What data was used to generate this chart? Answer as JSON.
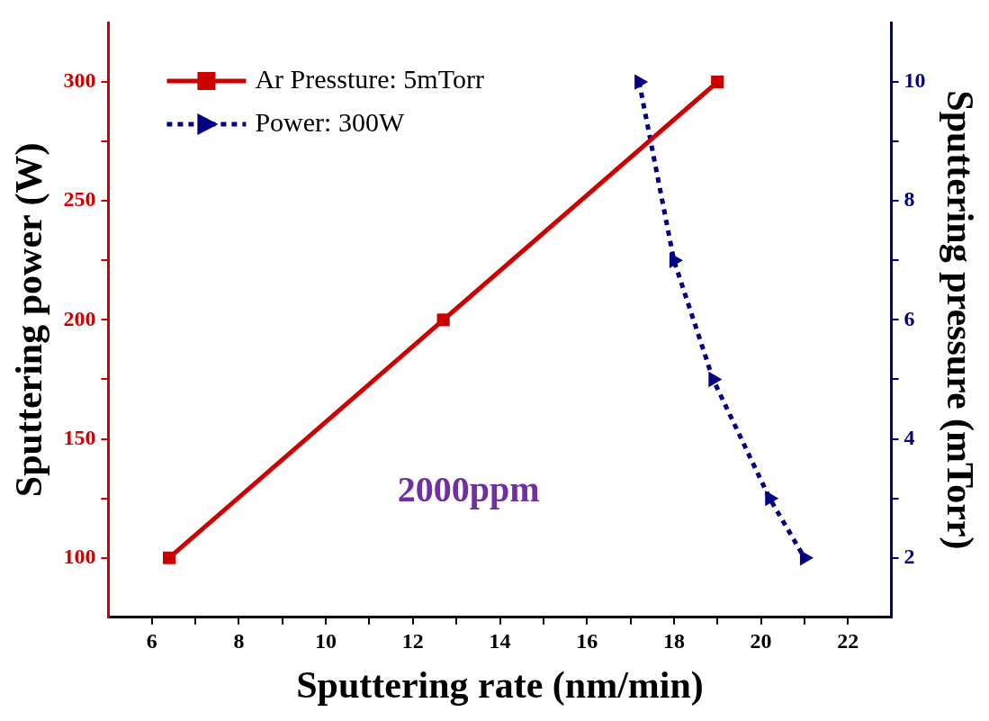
{
  "chart_data": {
    "type": "line",
    "xlabel": "Sputtering rate (nm/min)",
    "ylabel": "Sputtering power (W)",
    "y2label": "Sputtering pressure (mTorr)",
    "annotations": [
      "2000ppm"
    ],
    "xlim": [
      5,
      23
    ],
    "xticks": [
      6,
      {
        "value": 7,
        "label": null
      },
      8,
      {
        "value": 9,
        "label": null
      },
      10,
      {
        "value": 11,
        "label": null
      },
      12,
      {
        "value": 13,
        "label": null
      },
      14,
      {
        "value": 15,
        "label": null
      },
      16,
      {
        "value": 17,
        "label": null
      },
      18,
      {
        "value": 19,
        "label": null
      },
      20,
      {
        "value": 21,
        "label": null
      },
      22
    ],
    "ylim": [
      75,
      325
    ],
    "yticks": [
      100,
      {
        "value": 125,
        "label": null
      },
      150,
      {
        "value": 175,
        "label": null
      },
      200,
      {
        "value": 225,
        "label": null
      },
      250,
      {
        "value": 275,
        "label": null
      },
      300
    ],
    "y2lim": [
      1,
      11
    ],
    "y2ticks": [
      2,
      {
        "value": 3,
        "label": null
      },
      4,
      {
        "value": 5,
        "label": null
      },
      6,
      {
        "value": 7,
        "label": null
      },
      8,
      {
        "value": 9,
        "label": null
      },
      10
    ],
    "legend": "top left",
    "grid": false,
    "series": [
      {
        "name": "Ar Pressture: 5mTorr",
        "color": "#cc0000",
        "marker": "square",
        "line_style": "solid",
        "x": [
          6.4,
          12.7,
          19.0
        ],
        "values": [
          100,
          200,
          300
        ]
      },
      {
        "name": "Power: 300W",
        "color": "#000080",
        "marker": "triangle",
        "line_style": "dotted",
        "axis": "y2",
        "x": [
          17.2,
          18.0,
          18.9,
          20.2,
          21.0
        ],
        "values": [
          10,
          7,
          5,
          3,
          2
        ]
      }
    ]
  }
}
